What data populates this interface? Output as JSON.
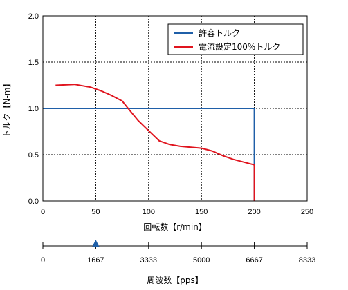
{
  "chart_data": {
    "type": "line",
    "title": "",
    "xlabel": "回転数【r/min】",
    "ylabel": "トルク【N-m】",
    "xlim": [
      0,
      250
    ],
    "ylim": [
      0,
      2.0
    ],
    "x_ticks": [
      0,
      50,
      100,
      150,
      200,
      250
    ],
    "y_ticks": [
      0.0,
      0.5,
      1.0,
      1.5,
      2.0
    ],
    "x_tick_labels": [
      "0",
      "50",
      "100",
      "150",
      "200",
      "250"
    ],
    "y_tick_labels": [
      "0.0",
      "0.5",
      "1.0",
      "1.5",
      "2.0"
    ],
    "grid": true,
    "legend_position": "top-right",
    "series": [
      {
        "name": "許容トルク",
        "color": "#1f5fa8",
        "x": [
          0,
          200,
          200
        ],
        "y": [
          1.0,
          1.0,
          0.0
        ]
      },
      {
        "name": "電流設定100%トルク",
        "color": "#e0141e",
        "x": [
          12,
          30,
          45,
          55,
          65,
          75,
          80,
          90,
          100,
          110,
          120,
          130,
          150,
          160,
          170,
          180,
          190,
          200,
          200
        ],
        "y": [
          1.25,
          1.26,
          1.23,
          1.19,
          1.14,
          1.08,
          1.01,
          0.87,
          0.76,
          0.65,
          0.61,
          0.59,
          0.57,
          0.54,
          0.49,
          0.45,
          0.42,
          0.39,
          0.0
        ]
      }
    ],
    "secondary_axis": {
      "xlabel": "周波数【pps】",
      "tick_labels": [
        "0",
        "1667",
        "3333",
        "5000",
        "6667",
        "8333"
      ],
      "marker_label_index": 1,
      "marker_color": "#1f5fa8"
    }
  }
}
